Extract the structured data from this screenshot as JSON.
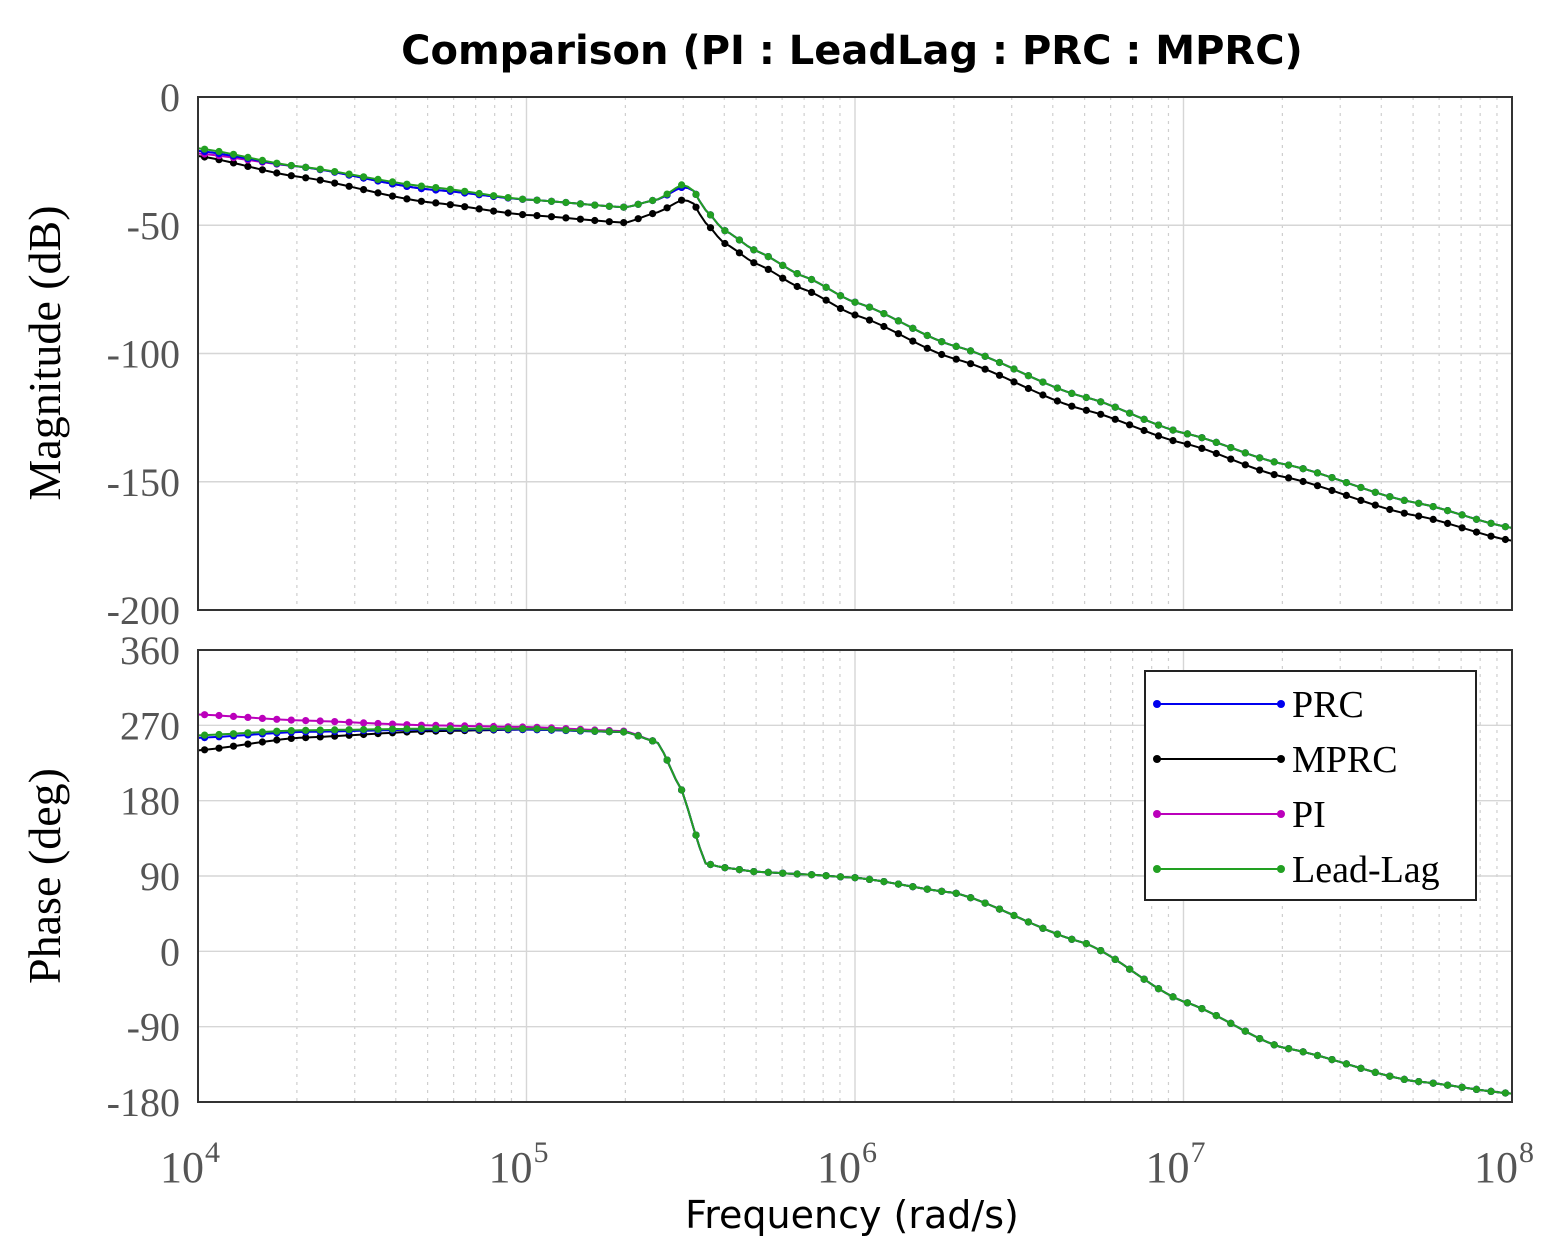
{
  "chart_data": {
    "type": "line",
    "title": "Comparison (PI : LeadLag : PRC : MPRC)",
    "xlabel": "Frequency  (rad/s)",
    "xscale": "log",
    "xlim": [
      10000,
      100000000
    ],
    "x_tick_labels": [
      {
        "base": "10",
        "exp": "4",
        "value": 10000
      },
      {
        "base": "10",
        "exp": "5",
        "value": 100000
      },
      {
        "base": "10",
        "exp": "6",
        "value": 1000000
      },
      {
        "base": "10",
        "exp": "7",
        "value": 10000000
      },
      {
        "base": "10",
        "exp": "8",
        "value": 100000000
      }
    ],
    "legend": {
      "position": "top-right of phase plot",
      "entries": [
        {
          "label": "PRC",
          "color": "#0000ee"
        },
        {
          "label": "MPRC",
          "color": "#000000"
        },
        {
          "label": "PI",
          "color": "#bb00bb"
        },
        {
          "label": "Lead-Lag",
          "color": "#22a022"
        }
      ]
    },
    "x": [
      10000,
      20000,
      50000,
      100000,
      200000,
      250000,
      300000,
      320000,
      350000,
      400000,
      500000,
      700000,
      1000000,
      2000000,
      5000000,
      10000000,
      20000000,
      50000000,
      100000000
    ],
    "magnitude": {
      "ylabel": "Magnitude (dB)",
      "ylim": [
        -200,
        0
      ],
      "yticks": [
        0,
        -50,
        -100,
        -150,
        -200
      ],
      "series": [
        {
          "name": "PRC",
          "values": [
            -21,
            -27,
            -36,
            -40,
            -43,
            -40,
            -35,
            -36,
            -44,
            -52,
            -60,
            -70,
            -80,
            -97,
            -117,
            -131,
            -143,
            -158,
            -168
          ]
        },
        {
          "name": "MPRC",
          "values": [
            -23,
            -31,
            -41,
            -46,
            -49,
            -45,
            -40,
            -41,
            -49,
            -57,
            -65,
            -75,
            -85,
            -102,
            -122,
            -135,
            -148,
            -163,
            -173
          ]
        },
        {
          "name": "PI",
          "values": [
            -22,
            -27,
            -36,
            -40,
            -43,
            -40,
            -35,
            -36,
            -44,
            -52,
            -60,
            -70,
            -80,
            -97,
            -117,
            -131,
            -143,
            -158,
            -168
          ]
        },
        {
          "name": "Lead-Lag",
          "values": [
            -20,
            -27,
            -35,
            -40,
            -43,
            -40,
            -34,
            -36,
            -44,
            -52,
            -60,
            -70,
            -80,
            -97,
            -117,
            -131,
            -143,
            -158,
            -168
          ]
        }
      ]
    },
    "phase": {
      "ylabel": "Phase (deg)",
      "ylim": [
        -180,
        360
      ],
      "yticks": [
        360,
        270,
        180,
        90,
        0,
        -90,
        -180
      ],
      "series": [
        {
          "name": "PRC",
          "values": [
            255,
            262,
            265,
            265,
            262,
            250,
            190,
            150,
            105,
            100,
            95,
            92,
            88,
            70,
            10,
            -60,
            -115,
            -155,
            -170
          ]
        },
        {
          "name": "MPRC",
          "values": [
            240,
            255,
            263,
            265,
            262,
            250,
            190,
            150,
            105,
            100,
            95,
            92,
            88,
            70,
            10,
            -60,
            -115,
            -155,
            -170
          ]
        },
        {
          "name": "PI",
          "values": [
            283,
            276,
            270,
            268,
            263,
            250,
            190,
            150,
            105,
            100,
            95,
            92,
            88,
            70,
            10,
            -60,
            -115,
            -155,
            -170
          ]
        },
        {
          "name": "Lead-Lag",
          "values": [
            258,
            264,
            266,
            266,
            262,
            250,
            190,
            150,
            105,
            100,
            95,
            92,
            88,
            70,
            10,
            -60,
            -115,
            -155,
            -170
          ]
        }
      ]
    }
  }
}
